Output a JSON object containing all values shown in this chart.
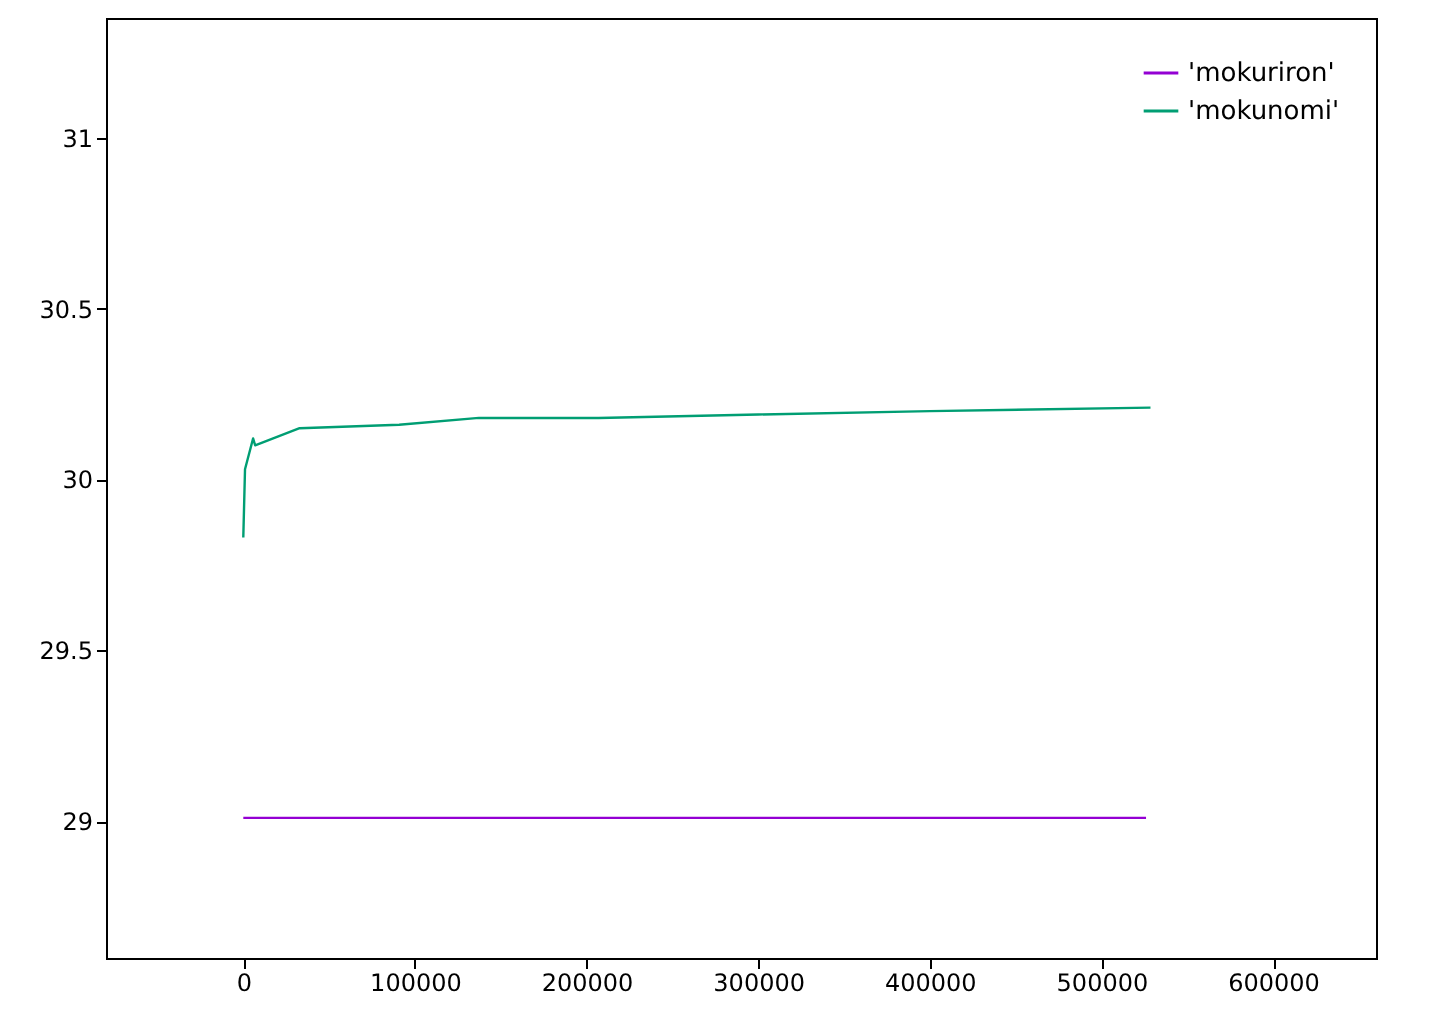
{
  "chart_data": {
    "type": "line",
    "xlim": [
      -80000,
      660000
    ],
    "xticks": [
      0,
      100000,
      200000,
      300000,
      400000,
      500000,
      600000
    ],
    "ylim": [
      28.6,
      31.35
    ],
    "yticks": [
      29,
      29.5,
      30,
      30.5,
      31
    ],
    "grid": false,
    "legend": "top right",
    "marker": "none",
    "line_style": "solid",
    "series": [
      {
        "name": "'mokuriron'",
        "color": "#9400d3",
        "x": [
          0,
          526000
        ],
        "values": [
          29.01,
          29.01
        ]
      },
      {
        "name": "'mokunomi'",
        "color": "#009e73",
        "x": [
          0,
          1000,
          5700,
          6900,
          32800,
          90800,
          137300,
          207000,
          300000,
          400000,
          528600
        ],
        "values": [
          29.83,
          30.03,
          30.12,
          30.1,
          30.15,
          30.16,
          30.18,
          30.18,
          30.19,
          30.2,
          30.21
        ]
      }
    ]
  }
}
